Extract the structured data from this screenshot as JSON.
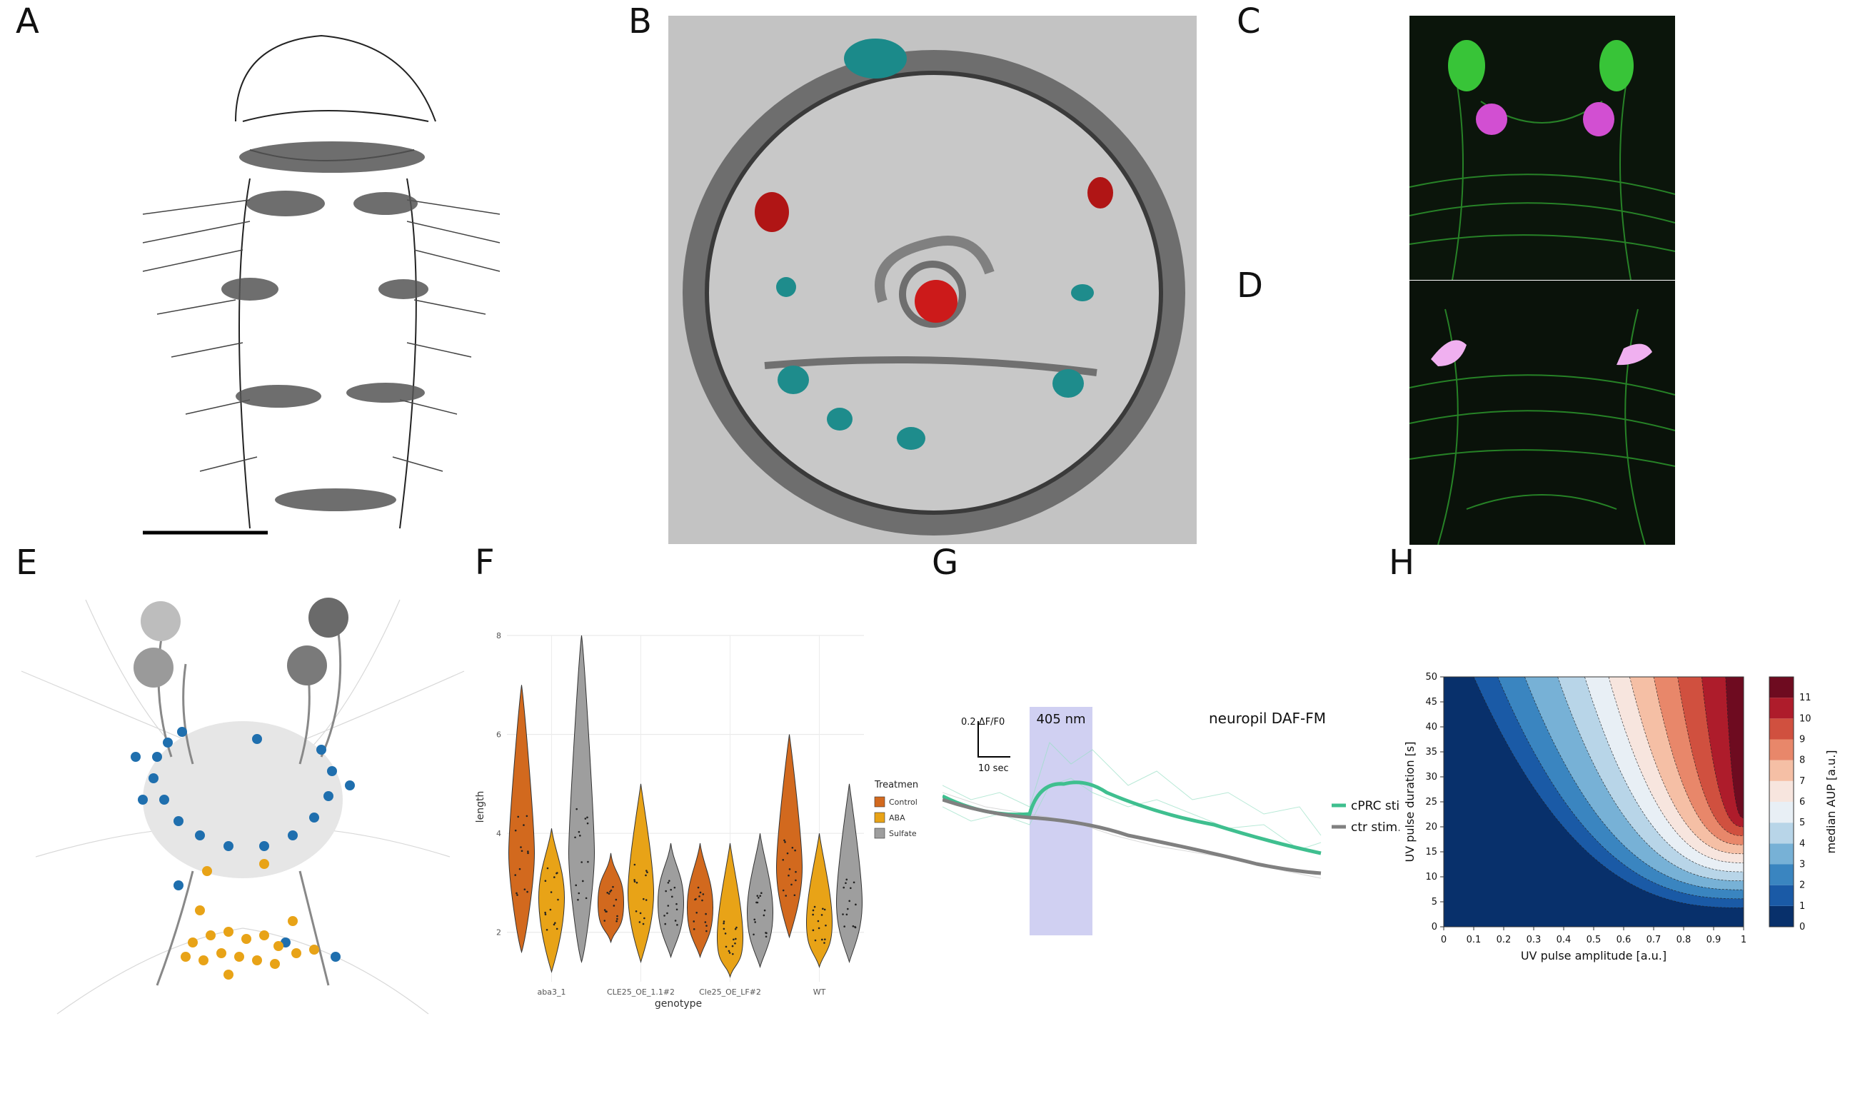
{
  "panel_labels": {
    "A": "A",
    "B": "B",
    "C": "C",
    "D": "D",
    "E": "E",
    "F": "F",
    "G": "G",
    "H": "H"
  },
  "colors": {
    "microscopy_bg": "#c3c3c3",
    "fluor_green": "#2e9e2e",
    "fluor_magenta": "#d24fd2",
    "neuron_blue": "#1f6fae",
    "neuron_orange": "#e8a317",
    "control": "#d2691e",
    "aba": "#e8a317",
    "sulfate": "#9e9e9e",
    "cprc": "#3fbf8f",
    "ctr": "#808080",
    "stim_band": "#c8c8f0"
  },
  "panel_f": {
    "chart_data": {
      "type": "violin",
      "xlabel": "genotype",
      "ylabel": "length",
      "categories": [
        "aba3_1",
        "CLE25_OE_1.1#2",
        "Cle25_OE_LF#2",
        "WT"
      ],
      "yticks": [
        "2",
        "4",
        "6",
        "8"
      ],
      "ylim": [
        1,
        8
      ],
      "legend_title": "Treatment",
      "series": [
        {
          "name": "Control",
          "medians": [
            3.6,
            2.6,
            2.5,
            3.3
          ],
          "mins": [
            1.6,
            1.8,
            1.5,
            1.9
          ],
          "maxs": [
            7.0,
            3.6,
            3.8,
            6.0
          ]
        },
        {
          "name": "ABA",
          "medians": [
            2.7,
            2.8,
            1.9,
            2.2
          ],
          "mins": [
            1.2,
            1.4,
            1.1,
            1.3
          ],
          "maxs": [
            4.1,
            5.0,
            3.8,
            4.0
          ]
        },
        {
          "name": "Sulfate",
          "medians": [
            3.6,
            2.6,
            2.4,
            2.6
          ],
          "mins": [
            1.4,
            1.5,
            1.3,
            1.4
          ],
          "maxs": [
            8.0,
            3.8,
            4.0,
            5.0
          ]
        }
      ],
      "legend_position": "right"
    }
  },
  "panel_g": {
    "title": "neuropil DAF-FM",
    "stim_label": "405 nm",
    "scale_y": "0.2 ΔF/F0",
    "scale_x": "10 sec",
    "legend": [
      "cPRC stim.",
      "ctr stim."
    ]
  },
  "panel_h": {
    "chart_data": {
      "type": "heatmap",
      "xlabel": "UV pulse amplitude [a.u.]",
      "ylabel": "UV pulse duration [s]",
      "colorbar_label": "median AUP [a.u.]",
      "xticks": [
        "0",
        "0.1",
        "0.2",
        "0.3",
        "0.4",
        "0.5",
        "0.6",
        "0.7",
        "0.8",
        "0.9",
        "1"
      ],
      "yticks": [
        "0",
        "5",
        "10",
        "15",
        "20",
        "25",
        "30",
        "35",
        "40",
        "45",
        "50"
      ],
      "xlim": [
        0,
        1
      ],
      "ylim": [
        0,
        50
      ],
      "levels": [
        "0",
        "1",
        "2",
        "3",
        "4",
        "5",
        "6",
        "7",
        "8",
        "9",
        "10",
        "11"
      ],
      "level_colors": [
        "#08306b",
        "#1a5aa6",
        "#3a85c0",
        "#77b1d6",
        "#b8d5e8",
        "#e8eff5",
        "#f7e5de",
        "#f5bfa5",
        "#e8876a",
        "#d0503f",
        "#ae1c2b",
        "#6e0b20"
      ]
    }
  }
}
